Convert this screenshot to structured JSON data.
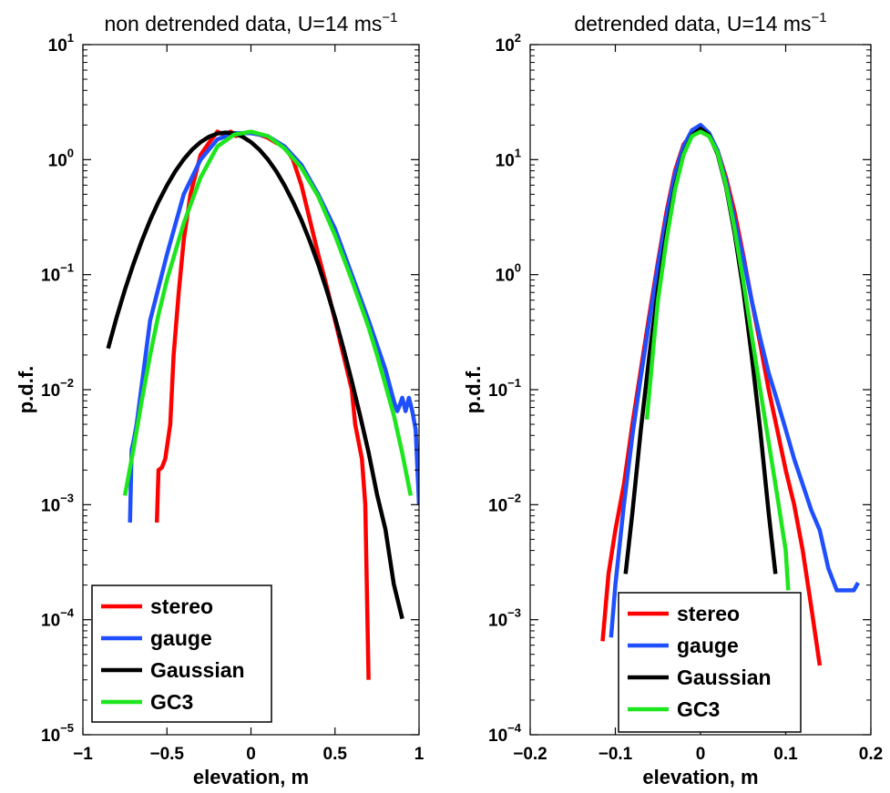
{
  "chart_data": [
    {
      "type": "line",
      "title": "non detrended data, U=14 ms",
      "title_sup": "−1",
      "xlabel": "elevation, m",
      "ylabel": "p.d.f.",
      "xlim": [
        -1,
        1
      ],
      "ylim": [
        1e-05,
        10
      ],
      "yscale": "log",
      "xticks": [
        -1,
        -0.5,
        0,
        0.5,
        1
      ],
      "xtick_labels": [
        "−1",
        "−0.5",
        "0",
        "0.5",
        "1"
      ],
      "yticks": [
        1e-05,
        0.0001,
        0.001,
        0.01,
        0.1,
        1,
        10
      ],
      "ytick_base": "10",
      "ytick_exponents": [
        "−5",
        "−4",
        "−3",
        "−2",
        "−1",
        "0",
        "1"
      ],
      "grid": false,
      "legend_position": "bottom-left",
      "series": [
        {
          "name": "stereo",
          "color": "#ff0000",
          "x": [
            -0.56,
            -0.55,
            -0.53,
            -0.51,
            -0.48,
            -0.46,
            -0.43,
            -0.4,
            -0.36,
            -0.3,
            -0.25,
            -0.2,
            -0.16,
            -0.12,
            -0.09,
            -0.05,
            0.0,
            0.05,
            0.1,
            0.15,
            0.2,
            0.25,
            0.3,
            0.35,
            0.4,
            0.45,
            0.5,
            0.55,
            0.6,
            0.62,
            0.66,
            0.68,
            0.7
          ],
          "y": [
            0.0007,
            0.002,
            0.0021,
            0.0025,
            0.005,
            0.02,
            0.07,
            0.2,
            0.5,
            1.1,
            1.4,
            1.75,
            1.65,
            1.75,
            1.6,
            1.7,
            1.7,
            1.65,
            1.55,
            1.4,
            1.3,
            1.0,
            0.6,
            0.3,
            0.15,
            0.08,
            0.04,
            0.02,
            0.01,
            0.005,
            0.0025,
            0.001,
            3e-05
          ]
        },
        {
          "name": "gauge",
          "color": "#1f4fff",
          "x": [
            -0.72,
            -0.71,
            -0.7,
            -0.68,
            -0.6,
            -0.5,
            -0.4,
            -0.3,
            -0.2,
            -0.1,
            0.0,
            0.1,
            0.2,
            0.3,
            0.4,
            0.5,
            0.6,
            0.7,
            0.8,
            0.85,
            0.87,
            0.88,
            0.9,
            0.92,
            0.94,
            0.96,
            0.98,
            1.0
          ],
          "y": [
            0.0007,
            0.003,
            0.0035,
            0.005,
            0.04,
            0.15,
            0.5,
            1.0,
            1.5,
            1.7,
            1.7,
            1.6,
            1.3,
            0.9,
            0.5,
            0.25,
            0.1,
            0.04,
            0.015,
            0.008,
            0.0065,
            0.007,
            0.0085,
            0.0065,
            0.0085,
            0.0065,
            0.0045,
            0.001
          ]
        },
        {
          "name": "Gaussian",
          "color": "#000000",
          "x": [
            -0.85,
            -0.8,
            -0.75,
            -0.7,
            -0.65,
            -0.6,
            -0.55,
            -0.5,
            -0.45,
            -0.4,
            -0.35,
            -0.3,
            -0.25,
            -0.2,
            -0.15,
            -0.1,
            -0.05,
            0.0,
            0.05,
            0.1,
            0.15,
            0.2,
            0.25,
            0.3,
            0.35,
            0.4,
            0.45,
            0.5,
            0.55,
            0.6,
            0.65,
            0.7,
            0.75,
            0.8,
            0.85,
            0.9
          ],
          "y": [
            0.00112,
            0.00207,
            0.00362,
            0.00604,
            0.0096,
            0.0146,
            0.0211,
            0.0293,
            0.0389,
            0.0493,
            0.0599,
            0.0696,
            0.0775,
            0.0826,
            0.0843,
            0.0826,
            0.0775,
            0.0696,
            0.0599,
            0.0493,
            0.0389,
            0.0293,
            0.0211,
            0.0146,
            0.0096,
            0.00604,
            0.00362,
            0.00207,
            0.00112,
            0.00058,
            0.00029,
            0.00014,
            6e-05,
            3e-05,
            1e-05,
            5e-06
          ],
          "y_scale": 20.4
        },
        {
          "name": "GC3",
          "color": "#1ee61e",
          "x": [
            -0.75,
            -0.7,
            -0.65,
            -0.6,
            -0.55,
            -0.5,
            -0.4,
            -0.3,
            -0.2,
            -0.1,
            0.0,
            0.1,
            0.2,
            0.3,
            0.4,
            0.5,
            0.6,
            0.7,
            0.75,
            0.8,
            0.85,
            0.9,
            0.95
          ],
          "y": [
            0.0012,
            0.003,
            0.008,
            0.02,
            0.045,
            0.09,
            0.28,
            0.7,
            1.3,
            1.65,
            1.75,
            1.6,
            1.25,
            0.85,
            0.48,
            0.22,
            0.09,
            0.035,
            0.02,
            0.011,
            0.006,
            0.0028,
            0.0012
          ]
        }
      ]
    },
    {
      "type": "line",
      "title": "detrended data, U=14 ms",
      "title_sup": "−1",
      "xlabel": "elevation, m",
      "ylabel": "p.d.f.",
      "xlim": [
        -0.2,
        0.2
      ],
      "ylim": [
        0.0001,
        100
      ],
      "yscale": "log",
      "xticks": [
        -0.2,
        -0.1,
        0,
        0.1,
        0.2
      ],
      "xtick_labels": [
        "−0.2",
        "−0.1",
        "0",
        "0.1",
        "0.2"
      ],
      "yticks": [
        0.0001,
        0.001,
        0.01,
        0.1,
        1,
        10,
        100
      ],
      "ytick_base": "10",
      "ytick_exponents": [
        "−4",
        "−3",
        "−2",
        "−1",
        "0",
        "1",
        "2"
      ],
      "grid": false,
      "legend_position": "bottom-center",
      "series": [
        {
          "name": "stereo",
          "color": "#ff0000",
          "x": [
            -0.115,
            -0.108,
            -0.1,
            -0.09,
            -0.08,
            -0.07,
            -0.06,
            -0.05,
            -0.04,
            -0.03,
            -0.02,
            -0.01,
            0.0,
            0.01,
            0.02,
            0.03,
            0.04,
            0.05,
            0.06,
            0.07,
            0.08,
            0.09,
            0.1,
            0.11,
            0.12,
            0.13,
            0.14
          ],
          "y": [
            0.00065,
            0.0025,
            0.006,
            0.015,
            0.05,
            0.15,
            0.45,
            1.3,
            3.5,
            8.0,
            13.5,
            17.0,
            17.5,
            16.0,
            12.0,
            7.0,
            3.5,
            1.5,
            0.6,
            0.25,
            0.1,
            0.045,
            0.02,
            0.01,
            0.004,
            0.0013,
            0.0004
          ]
        },
        {
          "name": "gauge",
          "color": "#1f4fff",
          "x": [
            -0.105,
            -0.1,
            -0.09,
            -0.08,
            -0.07,
            -0.06,
            -0.05,
            -0.04,
            -0.03,
            -0.02,
            -0.01,
            0.0,
            0.01,
            0.02,
            0.03,
            0.04,
            0.05,
            0.06,
            0.07,
            0.08,
            0.09,
            0.1,
            0.11,
            0.12,
            0.13,
            0.14,
            0.15,
            0.16,
            0.17,
            0.18,
            0.185
          ],
          "y": [
            0.0007,
            0.002,
            0.01,
            0.04,
            0.13,
            0.4,
            1.2,
            3.2,
            7.5,
            13.0,
            18.0,
            20.0,
            17.0,
            12.0,
            6.5,
            3.0,
            1.4,
            0.6,
            0.28,
            0.14,
            0.08,
            0.045,
            0.025,
            0.015,
            0.009,
            0.006,
            0.0028,
            0.0018,
            0.0018,
            0.0018,
            0.0021
          ]
        },
        {
          "name": "Gaussian",
          "color": "#000000",
          "x": [
            -0.088,
            -0.08,
            -0.07,
            -0.06,
            -0.05,
            -0.04,
            -0.03,
            -0.02,
            -0.01,
            0.0,
            0.01,
            0.02,
            0.03,
            0.04,
            0.05,
            0.06,
            0.07,
            0.08,
            0.088
          ],
          "y": [
            0.0025,
            0.0085,
            0.045,
            0.2,
            0.75,
            2.3,
            5.8,
            11.2,
            16.3,
            18.5,
            16.3,
            11.2,
            5.8,
            2.3,
            0.75,
            0.2,
            0.045,
            0.0085,
            0.0025
          ]
        },
        {
          "name": "GC3",
          "color": "#1ee61e",
          "x": [
            -0.063,
            -0.055,
            -0.05,
            -0.04,
            -0.03,
            -0.02,
            -0.01,
            0.0,
            0.01,
            0.02,
            0.03,
            0.04,
            0.05,
            0.06,
            0.07,
            0.08,
            0.09,
            0.1,
            0.103
          ],
          "y": [
            0.055,
            0.25,
            0.6,
            2.0,
            5.5,
            11.0,
            16.0,
            17.5,
            16.0,
            11.5,
            6.0,
            2.5,
            0.9,
            0.3,
            0.1,
            0.035,
            0.012,
            0.004,
            0.0018
          ]
        }
      ]
    }
  ]
}
